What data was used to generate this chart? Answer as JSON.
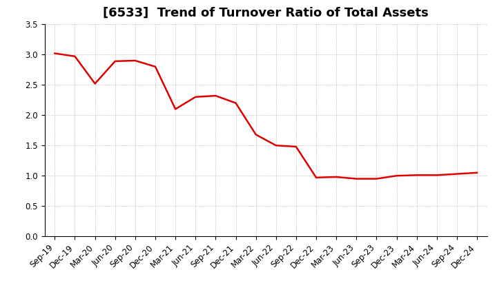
{
  "title": "[6533]  Trend of Turnover Ratio of Total Assets",
  "labels": [
    "Sep-19",
    "Dec-19",
    "Mar-20",
    "Jun-20",
    "Sep-20",
    "Dec-20",
    "Mar-21",
    "Jun-21",
    "Sep-21",
    "Dec-21",
    "Mar-22",
    "Jun-22",
    "Sep-22",
    "Dec-22",
    "Mar-23",
    "Jun-23",
    "Sep-23",
    "Dec-23",
    "Mar-24",
    "Jun-24",
    "Sep-24",
    "Dec-24"
  ],
  "values": [
    3.02,
    2.97,
    2.52,
    2.89,
    2.9,
    2.8,
    2.1,
    2.3,
    2.32,
    2.2,
    1.68,
    1.5,
    1.48,
    0.97,
    0.98,
    0.95,
    0.95,
    1.0,
    1.01,
    1.01,
    1.03,
    1.05
  ],
  "line_color": "#dd0000",
  "line_width": 1.8,
  "ylim": [
    0.0,
    3.5
  ],
  "yticks": [
    0.0,
    0.5,
    1.0,
    1.5,
    2.0,
    2.5,
    3.0,
    3.5
  ],
  "bg_color": "#ffffff",
  "plot_bg_color": "#ffffff",
  "grid_color": "#999999",
  "title_fontsize": 13,
  "tick_fontsize": 8.5
}
